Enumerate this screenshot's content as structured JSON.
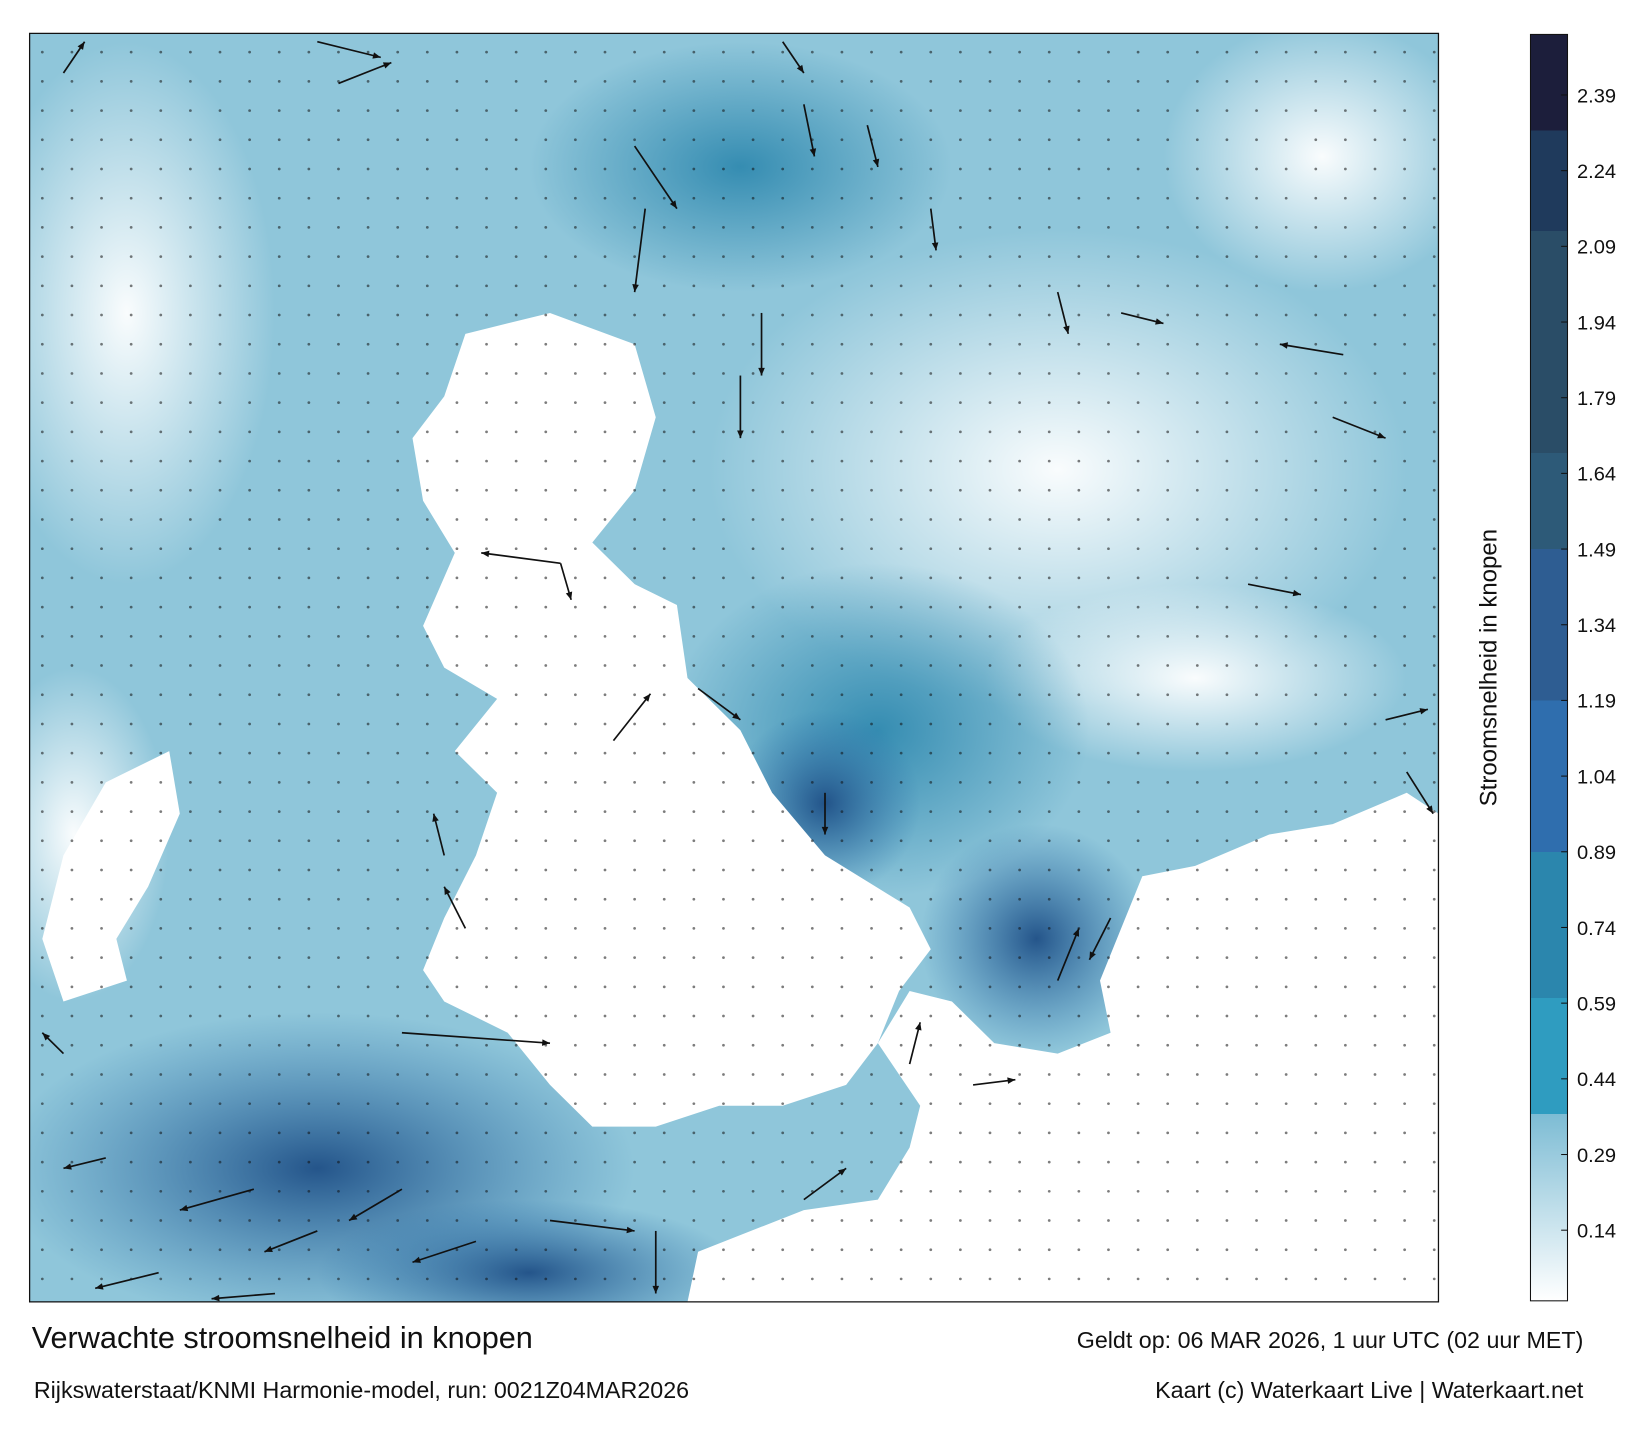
{
  "map": {
    "title": "Verwachte stroomsnelheid in knopen",
    "subtitle": "Rijkswaterstaat/KNMI Harmonie-model, run: 0021Z04MAR2026",
    "valid_time": "Geldt op: 06 MAR 2026, 1 uur UTC (02 uur MET)",
    "credit": "Kaart (c) Waterkaart Live | Waterkaart.net",
    "colorbar": {
      "label": "Stroomsnelheid in knopen",
      "lim": [
        0,
        2.51
      ],
      "ticks": [
        0.14,
        0.29,
        0.44,
        0.59,
        0.74,
        0.89,
        1.04,
        1.19,
        1.34,
        1.49,
        1.64,
        1.79,
        1.94,
        2.09,
        2.24,
        2.39
      ],
      "colorscale": [
        {
          "value": 0,
          "color": "#ffffff"
        },
        {
          "value": 0.37,
          "color": "#7dbcd4"
        },
        {
          "value": 0.37,
          "color": "#2f9cc0"
        },
        {
          "value": 0.6,
          "color": "#2f9cc0"
        },
        {
          "value": 0.6,
          "color": "#2b86ad"
        },
        {
          "value": 0.89,
          "color": "#2b86ad"
        },
        {
          "value": 0.89,
          "color": "#2f6eae"
        },
        {
          "value": 1.19,
          "color": "#2f6eae"
        },
        {
          "value": 1.19,
          "color": "#2e5d92"
        },
        {
          "value": 1.49,
          "color": "#2e5d92"
        },
        {
          "value": 1.49,
          "color": "#2d5a78"
        },
        {
          "value": 1.68,
          "color": "#2d5a78"
        },
        {
          "value": 1.68,
          "color": "#2a4d67"
        },
        {
          "value": 2.12,
          "color": "#2a4d67"
        },
        {
          "value": 2.12,
          "color": "#1f3a5c"
        },
        {
          "value": 2.32,
          "color": "#1f3a5c"
        },
        {
          "value": 2.32,
          "color": "#1c1e3b"
        },
        {
          "value": 2.51,
          "color": "#1c1e3b"
        }
      ]
    }
  }
}
